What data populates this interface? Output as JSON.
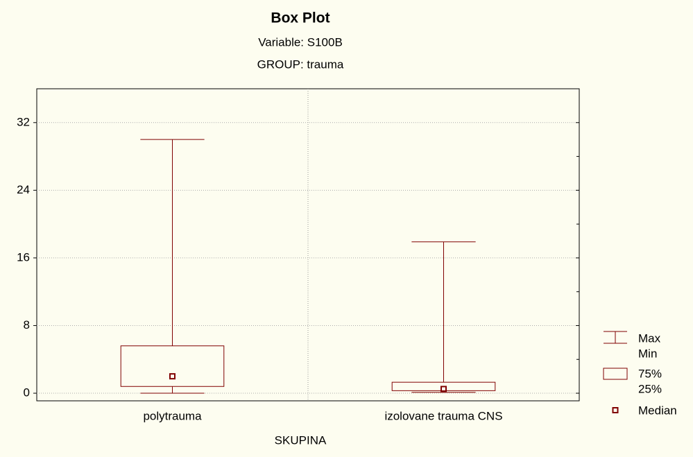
{
  "chart_data": {
    "type": "box",
    "title": "Box Plot",
    "subtitles": [
      "Variable: S100B",
      "GROUP: trauma"
    ],
    "x_label": "SKUPINA",
    "categories": [
      "polytrauma",
      "izolovane trauma CNS"
    ],
    "boxes": [
      {
        "min": 0,
        "q1": 0.8,
        "median": 2.0,
        "q3": 5.6,
        "max": 30.0
      },
      {
        "min": 0.1,
        "q1": 0.3,
        "median": 0.5,
        "q3": 1.3,
        "max": 17.9
      }
    ],
    "color": "#800000",
    "ylim": [
      -0.9,
      36
    ],
    "yticks": [
      0,
      8,
      16,
      24,
      32
    ],
    "minor_yticks": [
      4,
      12,
      20,
      28
    ],
    "grid": true,
    "legend": {
      "whisker": [
        "Max",
        "Min"
      ],
      "box": [
        "75%",
        "25%"
      ],
      "median": "Median"
    }
  }
}
